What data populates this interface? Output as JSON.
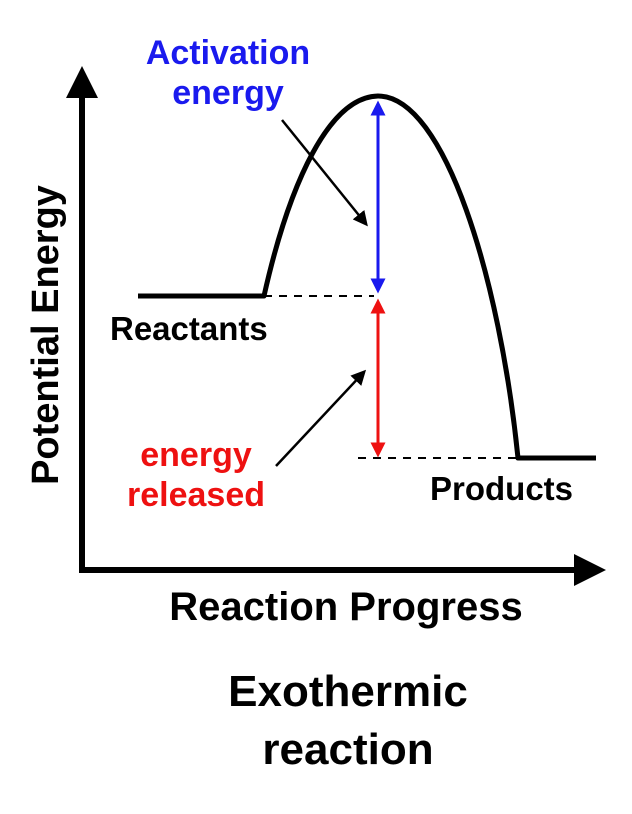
{
  "diagram": {
    "title_line1": "Exothermic",
    "title_line2": "reaction",
    "x_axis_label": "Reaction Progress",
    "y_axis_label": "Potential Energy",
    "reactants_label": "Reactants",
    "products_label": "Products",
    "activation_line1": "Activation",
    "activation_line2": "energy",
    "released_line1": "energy",
    "released_line2": "released",
    "colors": {
      "curve": "#000000",
      "activation": "#1a1aee",
      "released": "#ee1111",
      "axis": "#000000"
    }
  }
}
